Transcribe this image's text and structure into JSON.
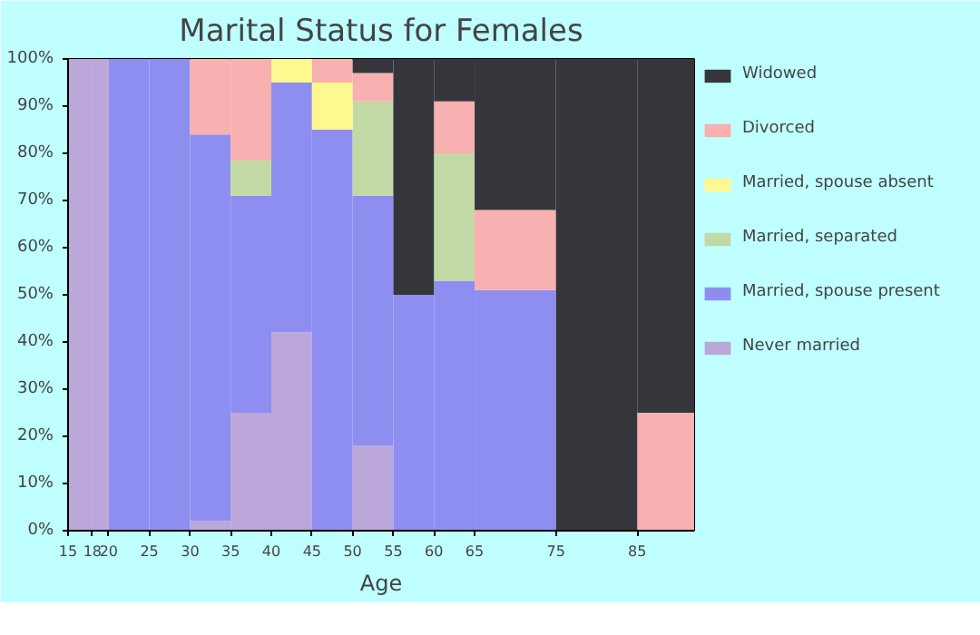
{
  "chart_data": {
    "type": "bar",
    "stacked": true,
    "title": "Marital Status for Females",
    "xlabel": "Age",
    "x": [
      16.5,
      19,
      22.5,
      27.5,
      32.5,
      37.5,
      42.5,
      47.5,
      52.5,
      57.5,
      62.5,
      70,
      80,
      88.5
    ],
    "xlim": [
      15,
      92
    ],
    "xticks": [
      15,
      18,
      20,
      25,
      30,
      35,
      40,
      45,
      50,
      55,
      60,
      65,
      75,
      85
    ],
    "ylim": [
      0,
      100
    ],
    "yticks": [
      {
        "value": 0,
        "label": "0%"
      },
      {
        "value": 10,
        "label": "10%"
      },
      {
        "value": 20,
        "label": "20%"
      },
      {
        "value": 30,
        "label": "30%"
      },
      {
        "value": 40,
        "label": "40%"
      },
      {
        "value": 50,
        "label": "50%"
      },
      {
        "value": 60,
        "label": "60%"
      },
      {
        "value": 70,
        "label": "70%"
      },
      {
        "value": 80,
        "label": "80%"
      },
      {
        "value": 90,
        "label": "90%"
      },
      {
        "value": 100,
        "label": "100%"
      }
    ],
    "legend": "right",
    "series": [
      {
        "name": "Never married",
        "color": "#bca7da",
        "values": [
          100,
          100,
          0,
          0,
          2,
          25,
          42,
          0,
          18,
          0,
          0,
          0,
          0,
          0
        ]
      },
      {
        "name": "Married, spouse present",
        "color": "#8e8ef0",
        "values": [
          0,
          0,
          100,
          100,
          82,
          46,
          53,
          85,
          53,
          50,
          53,
          51,
          0,
          0
        ]
      },
      {
        "name": "Married, separated",
        "color": "#c2d9a6",
        "values": [
          0,
          0,
          0,
          0,
          0,
          7.5,
          0,
          0,
          20,
          0,
          27,
          0,
          0,
          0
        ]
      },
      {
        "name": "Married, spouse absent",
        "color": "#fff890",
        "values": [
          0,
          0,
          0,
          0,
          0,
          0,
          5,
          10,
          0,
          0,
          0,
          0,
          0,
          0
        ]
      },
      {
        "name": "Divorced",
        "color": "#f8b0b0",
        "values": [
          0,
          0,
          0,
          0,
          16,
          21.5,
          0,
          5,
          6,
          0,
          11,
          17,
          0,
          25
        ]
      },
      {
        "name": "Widowed",
        "color": "#35363c",
        "values": [
          0,
          0,
          0,
          0,
          0,
          0,
          0,
          0,
          3,
          50,
          9,
          32,
          100,
          75
        ]
      }
    ]
  }
}
